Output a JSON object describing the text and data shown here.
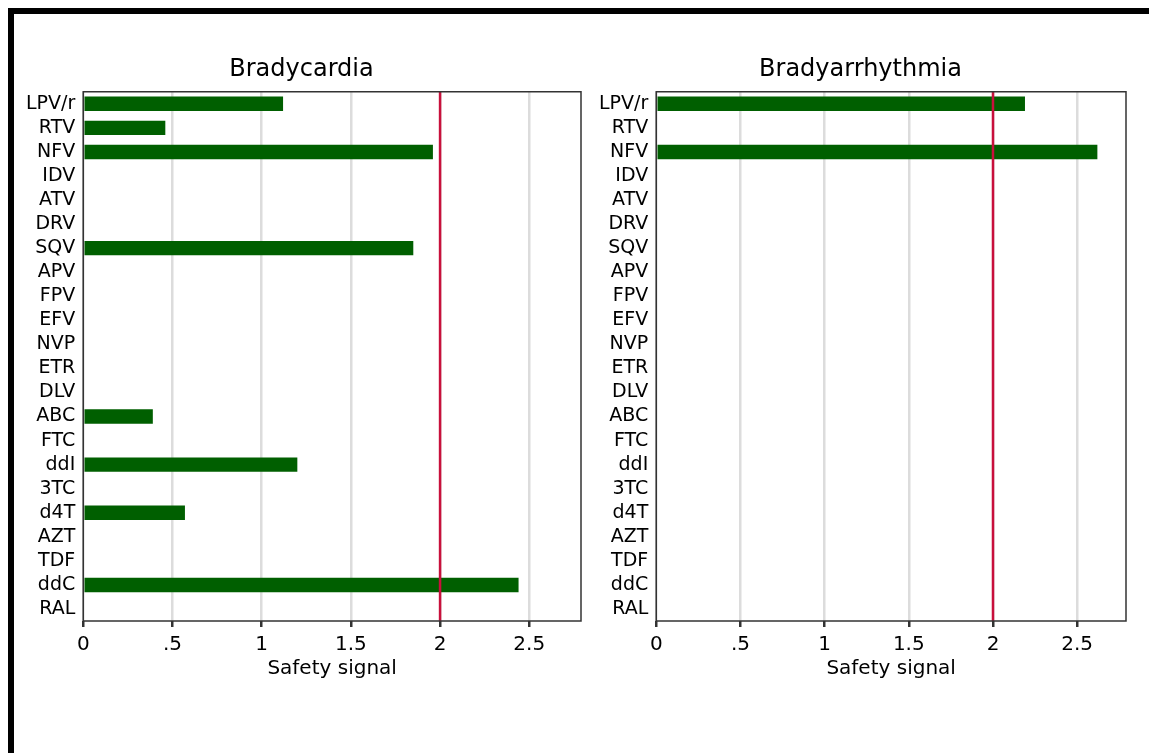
{
  "chart_data": [
    {
      "type": "bar",
      "orientation": "horizontal",
      "title": "Bradycardia",
      "xlabel": "Safety signal",
      "categories": [
        "LPV/r",
        "RTV",
        "NFV",
        "IDV",
        "ATV",
        "DRV",
        "SQV",
        "APV",
        "FPV",
        "EFV",
        "NVP",
        "ETR",
        "DLV",
        "ABC",
        "FTC",
        "ddI",
        "3TC",
        "d4T",
        "AZT",
        "TDF",
        "ddC",
        "RAL"
      ],
      "values": [
        1.12,
        0.46,
        1.96,
        null,
        null,
        null,
        1.85,
        null,
        null,
        null,
        null,
        null,
        null,
        0.39,
        null,
        1.2,
        null,
        0.57,
        null,
        null,
        2.44,
        null
      ],
      "color": "#005f00",
      "xlim": [
        0,
        2.79
      ],
      "xticks": [
        0,
        {
          "value": 0.5,
          "label": ".5"
        },
        1,
        1.5,
        2,
        2.5
      ],
      "grid": "x",
      "ref_lines": [
        {
          "axis": "x",
          "value": 2,
          "color": "#c8103c"
        }
      ]
    },
    {
      "type": "bar",
      "orientation": "horizontal",
      "title": "Bradyarrhythmia",
      "xlabel": "Safety signal",
      "categories": [
        "LPV/r",
        "RTV",
        "NFV",
        "IDV",
        "ATV",
        "DRV",
        "SQV",
        "APV",
        "FPV",
        "EFV",
        "NVP",
        "ETR",
        "DLV",
        "ABC",
        "FTC",
        "ddI",
        "3TC",
        "d4T",
        "AZT",
        "TDF",
        "ddC",
        "RAL"
      ],
      "values": [
        2.19,
        null,
        2.62,
        null,
        null,
        null,
        null,
        null,
        null,
        null,
        null,
        null,
        null,
        null,
        null,
        null,
        null,
        null,
        null,
        null,
        null,
        null
      ],
      "color": "#005f00",
      "xlim": [
        0,
        2.79
      ],
      "xticks": [
        0,
        {
          "value": 0.5,
          "label": ".5"
        },
        1,
        1.5,
        2,
        2.5
      ],
      "grid": "x",
      "ref_lines": [
        {
          "axis": "x",
          "value": 2,
          "color": "#c8103c"
        }
      ]
    }
  ]
}
